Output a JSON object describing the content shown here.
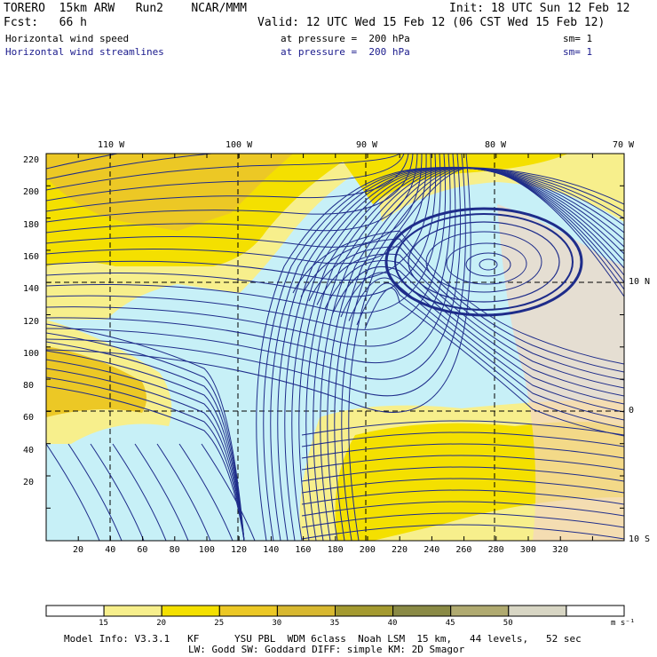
{
  "header": {
    "model": "TORERO  15km ARW   Run2    NCAR/MMM",
    "init": "Init: 18 UTC Sun 12 Feb 12",
    "fcst": "Fcst:   66 h",
    "valid": "Valid: 12 UTC Wed 15 Feb 12 (06 CST Wed 15 Feb 12)",
    "field1_name": "Horizontal wind speed",
    "field1_level": "at pressure =  200 hPa",
    "field1_smooth": "sm= 1",
    "field2_name": "Horizontal wind streamlines",
    "field2_level": "at pressure =  200 hPa",
    "field2_smooth": "sm= 1"
  },
  "map": {
    "top_lon_labels": [
      "110 W",
      "100 W",
      "90 W",
      "80 W",
      "70 W"
    ],
    "right_lat_labels": [
      "10 N",
      "0",
      "10 S"
    ],
    "y_grid_labels": [
      "220",
      "200",
      "180",
      "160",
      "140",
      "120",
      "100",
      "80",
      "60",
      "40",
      "20"
    ],
    "x_grid_labels": [
      "20",
      "40",
      "60",
      "80",
      "100",
      "120",
      "140",
      "160",
      "180",
      "200",
      "220",
      "240",
      "260",
      "280",
      "300",
      "320"
    ],
    "colors": {
      "calm": "#ffffff",
      "c15": "#c7f0f7",
      "c20": "#f7ef8c",
      "c25": "#f4e000",
      "c30": "#ecc825",
      "streamline": "#1e2c8a",
      "land": "#f2d6c2"
    }
  },
  "colorbar": {
    "labels": [
      "15",
      "20",
      "25",
      "30",
      "35",
      "40",
      "45",
      "50"
    ],
    "unit": "m s⁻¹",
    "colors": [
      "#ffffff",
      "#f7ef8c",
      "#f4e000",
      "#ecc825",
      "#d8b830",
      "#a49a30",
      "#8a8a45",
      "#b0aa70",
      "#d8d6c4",
      "#ffffff"
    ]
  },
  "footer": {
    "line1": "Model Info: V3.3.1   KF      YSU PBL  WDM 6class  Noah LSM  15 km,   44 levels,   52 sec",
    "line2": "LW: Godd SW: Goddard DIFF: simple KM: 2D Smagor"
  }
}
